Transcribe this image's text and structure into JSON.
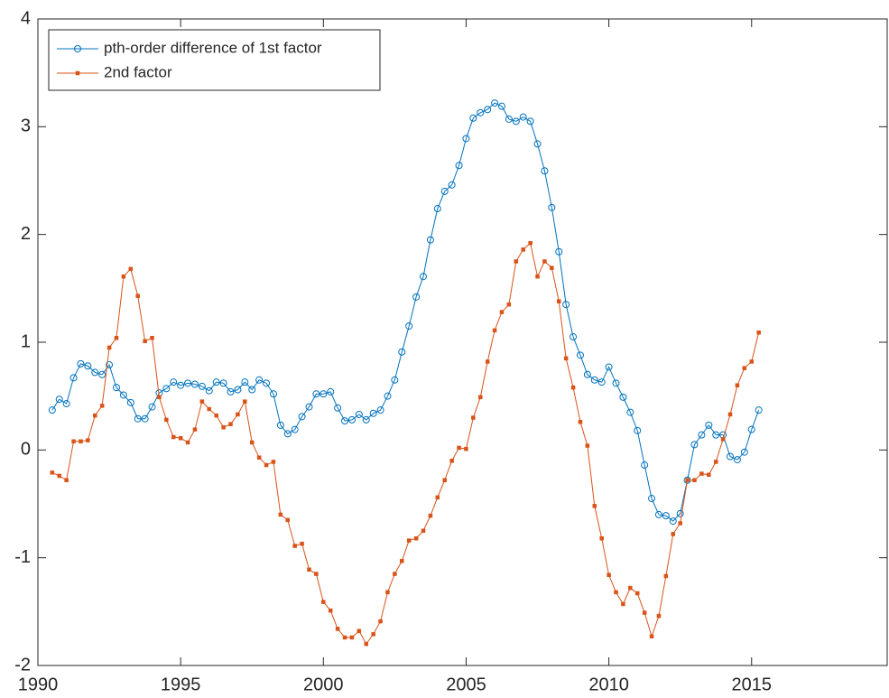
{
  "chart_data": {
    "type": "line",
    "x": [
      1990.5,
      1990.75,
      1991,
      1991.25,
      1991.5,
      1991.75,
      1992,
      1992.25,
      1992.5,
      1992.75,
      1993,
      1993.25,
      1993.5,
      1993.75,
      1994,
      1994.25,
      1994.5,
      1994.75,
      1995,
      1995.25,
      1995.5,
      1995.75,
      1996,
      1996.25,
      1996.5,
      1996.75,
      1997,
      1997.25,
      1997.5,
      1997.75,
      1998,
      1998.25,
      1998.5,
      1998.75,
      1999,
      1999.25,
      1999.5,
      1999.75,
      2000,
      2000.25,
      2000.5,
      2000.75,
      2001,
      2001.25,
      2001.5,
      2001.75,
      2002,
      2002.25,
      2002.5,
      2002.75,
      2003,
      2003.25,
      2003.5,
      2003.75,
      2004,
      2004.25,
      2004.5,
      2004.75,
      2005,
      2005.25,
      2005.5,
      2005.75,
      2006,
      2006.25,
      2006.5,
      2006.75,
      2007,
      2007.25,
      2007.5,
      2007.75,
      2008,
      2008.25,
      2008.5,
      2008.75,
      2009,
      2009.25,
      2009.5,
      2009.75,
      2010,
      2010.25,
      2010.5,
      2010.75,
      2011,
      2011.25,
      2011.5,
      2011.75,
      2012,
      2012.25,
      2012.5,
      2012.75,
      2013,
      2013.25,
      2013.5,
      2013.75,
      2014,
      2014.25,
      2014.5,
      2014.75,
      2015,
      2015.25
    ],
    "series": [
      {
        "name": "pth-order difference of 1st factor",
        "color": "#0072bd",
        "marker": "circle",
        "values": [
          0.37,
          0.47,
          0.43,
          0.67,
          0.8,
          0.78,
          0.72,
          0.7,
          0.79,
          0.58,
          0.51,
          0.44,
          0.29,
          0.29,
          0.4,
          0.53,
          0.57,
          0.63,
          0.6,
          0.62,
          0.61,
          0.59,
          0.55,
          0.63,
          0.62,
          0.54,
          0.56,
          0.63,
          0.56,
          0.65,
          0.62,
          0.52,
          0.23,
          0.15,
          0.19,
          0.31,
          0.4,
          0.52,
          0.52,
          0.54,
          0.39,
          0.27,
          0.28,
          0.33,
          0.28,
          0.34,
          0.37,
          0.5,
          0.65,
          0.91,
          1.15,
          1.42,
          1.61,
          1.95,
          2.24,
          2.4,
          2.46,
          2.64,
          2.89,
          3.08,
          3.13,
          3.16,
          3.22,
          3.19,
          3.07,
          3.05,
          3.09,
          3.05,
          2.84,
          2.59,
          2.25,
          1.84,
          1.35,
          1.05,
          0.88,
          0.7,
          0.65,
          0.63,
          0.77,
          0.62,
          0.49,
          0.35,
          0.18,
          -0.14,
          -0.45,
          -0.6,
          -0.61,
          -0.66,
          -0.59,
          -0.28,
          0.05,
          0.14,
          0.23,
          0.14,
          0.14,
          -0.06,
          -0.09,
          -0.02,
          0.19,
          0.37
        ]
      },
      {
        "name": "2nd factor",
        "color": "#d95319",
        "marker": "square",
        "values": [
          -0.21,
          -0.24,
          -0.28,
          0.08,
          0.08,
          0.09,
          0.32,
          0.41,
          0.95,
          1.04,
          1.61,
          1.68,
          1.43,
          1.01,
          1.04,
          0.49,
          0.28,
          0.12,
          0.11,
          0.07,
          0.19,
          0.45,
          0.38,
          0.32,
          0.21,
          0.24,
          0.33,
          0.45,
          0.07,
          -0.07,
          -0.14,
          -0.11,
          -0.6,
          -0.65,
          -0.89,
          -0.87,
          -1.11,
          -1.15,
          -1.41,
          -1.49,
          -1.66,
          -1.74,
          -1.74,
          -1.68,
          -1.8,
          -1.71,
          -1.59,
          -1.32,
          -1.15,
          -1.03,
          -0.84,
          -0.82,
          -0.75,
          -0.61,
          -0.44,
          -0.28,
          -0.1,
          0.02,
          0.01,
          0.3,
          0.49,
          0.82,
          1.11,
          1.28,
          1.35,
          1.75,
          1.86,
          1.92,
          1.61,
          1.75,
          1.69,
          1.38,
          0.85,
          0.58,
          0.26,
          0.04,
          -0.52,
          -0.82,
          -1.16,
          -1.32,
          -1.43,
          -1.28,
          -1.33,
          -1.51,
          -1.73,
          -1.54,
          -1.17,
          -0.78,
          -0.68,
          -0.28,
          -0.28,
          -0.22,
          -0.23,
          -0.11,
          0.1,
          0.33,
          0.6,
          0.76,
          0.82,
          1.09
        ]
      }
    ],
    "xlim": [
      1990,
      2019.75
    ],
    "xticks": [
      1990,
      1995,
      2000,
      2005,
      2010,
      2015
    ],
    "ylim": [
      -2,
      4
    ],
    "yticks": [
      -2,
      -1,
      0,
      1,
      2,
      3,
      4
    ],
    "legend": "top-left"
  }
}
